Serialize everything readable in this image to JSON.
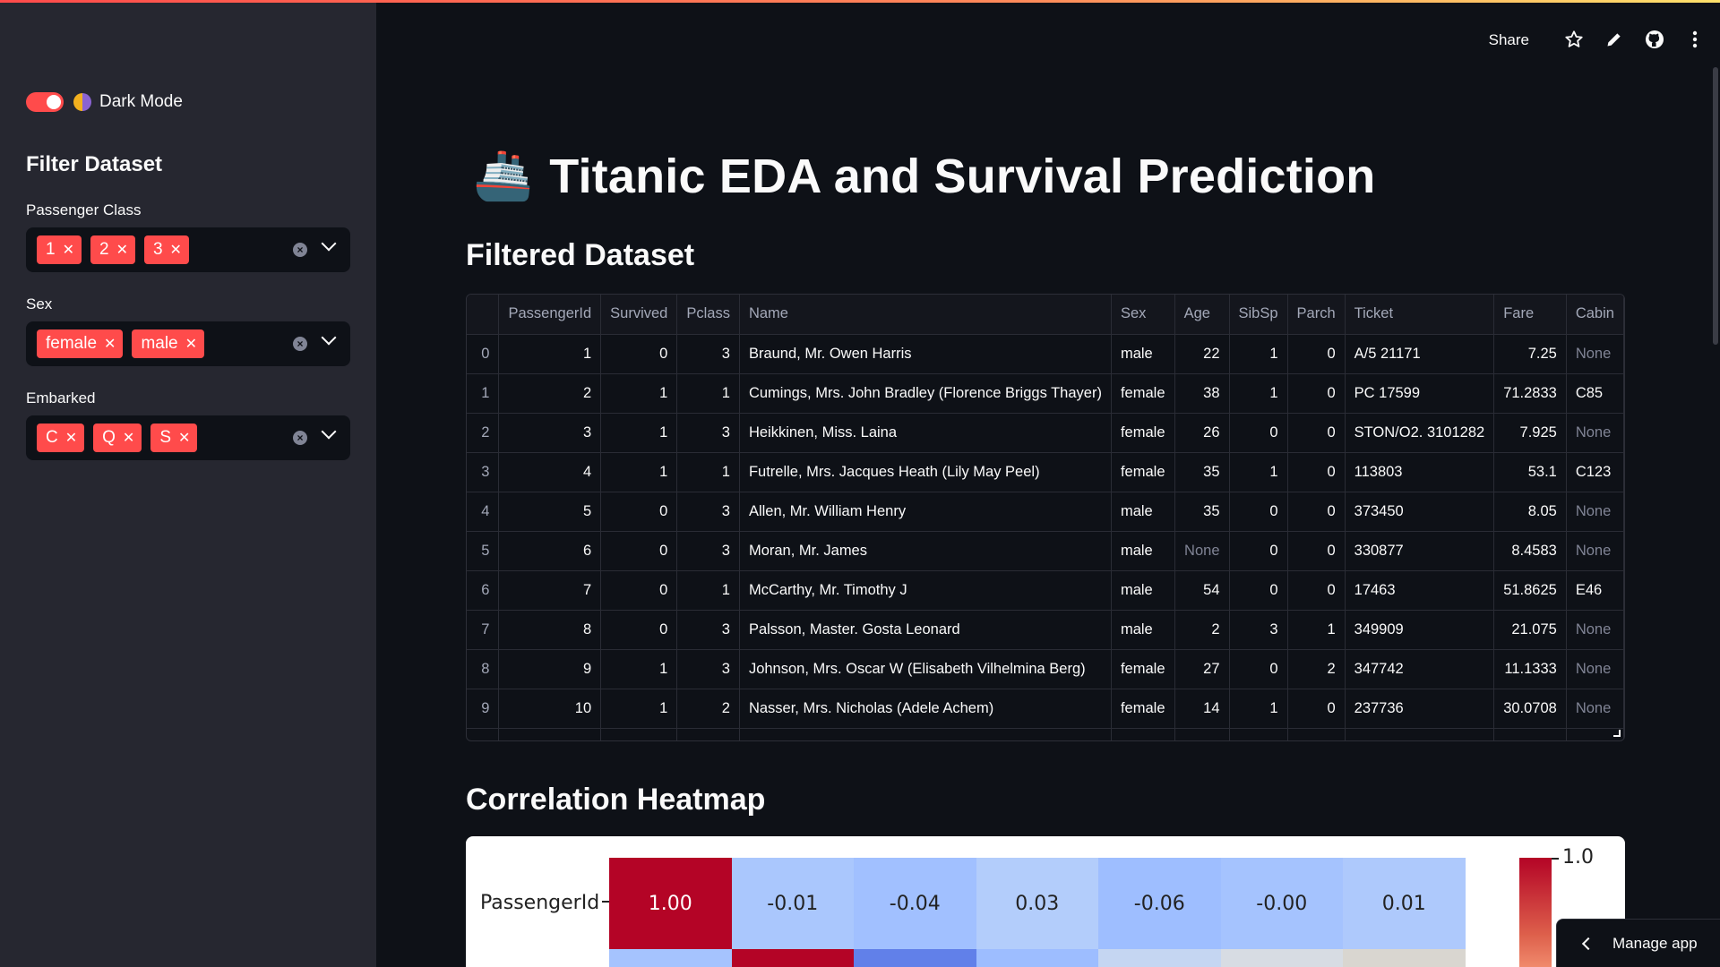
{
  "sidebar": {
    "toggle_label": "Dark Mode",
    "title": "Filter Dataset",
    "filters": [
      {
        "label": "Passenger Class",
        "chips": [
          "1",
          "2",
          "3"
        ]
      },
      {
        "label": "Sex",
        "chips": [
          "female",
          "male"
        ]
      },
      {
        "label": "Embarked",
        "chips": [
          "C",
          "Q",
          "S"
        ]
      }
    ]
  },
  "header": {
    "share_label": "Share",
    "icons": [
      "star-icon",
      "pencil-icon",
      "github-icon",
      "more-vertical-icon"
    ]
  },
  "main": {
    "title": "Titanic EDA and Survival Prediction",
    "title_icon": "ship-icon",
    "dataset_heading": "Filtered Dataset",
    "heatmap_heading": "Correlation Heatmap"
  },
  "table": {
    "columns": [
      "",
      "PassengerId",
      "Survived",
      "Pclass",
      "Name",
      "Sex",
      "Age",
      "SibSp",
      "Parch",
      "Ticket",
      "Fare",
      "Cabin"
    ],
    "rows": [
      [
        "0",
        "1",
        "0",
        "3",
        "Braund, Mr. Owen Harris",
        "male",
        "22",
        "1",
        "0",
        "A/5 21171",
        "7.25",
        "None"
      ],
      [
        "1",
        "2",
        "1",
        "1",
        "Cumings, Mrs. John Bradley (Florence Briggs Thayer)",
        "female",
        "38",
        "1",
        "0",
        "PC 17599",
        "71.2833",
        "C85"
      ],
      [
        "2",
        "3",
        "1",
        "3",
        "Heikkinen, Miss. Laina",
        "female",
        "26",
        "0",
        "0",
        "STON/O2. 3101282",
        "7.925",
        "None"
      ],
      [
        "3",
        "4",
        "1",
        "1",
        "Futrelle, Mrs. Jacques Heath (Lily May Peel)",
        "female",
        "35",
        "1",
        "0",
        "113803",
        "53.1",
        "C123"
      ],
      [
        "4",
        "5",
        "0",
        "3",
        "Allen, Mr. William Henry",
        "male",
        "35",
        "0",
        "0",
        "373450",
        "8.05",
        "None"
      ],
      [
        "5",
        "6",
        "0",
        "3",
        "Moran, Mr. James",
        "male",
        "None",
        "0",
        "0",
        "330877",
        "8.4583",
        "None"
      ],
      [
        "6",
        "7",
        "0",
        "1",
        "McCarthy, Mr. Timothy J",
        "male",
        "54",
        "0",
        "0",
        "17463",
        "51.8625",
        "E46"
      ],
      [
        "7",
        "8",
        "0",
        "3",
        "Palsson, Master. Gosta Leonard",
        "male",
        "2",
        "3",
        "1",
        "349909",
        "21.075",
        "None"
      ],
      [
        "8",
        "9",
        "1",
        "3",
        "Johnson, Mrs. Oscar W (Elisabeth Vilhelmina Berg)",
        "female",
        "27",
        "0",
        "2",
        "347742",
        "11.1333",
        "None"
      ],
      [
        "9",
        "10",
        "1",
        "2",
        "Nasser, Mrs. Nicholas (Adele Achem)",
        "female",
        "14",
        "1",
        "0",
        "237736",
        "30.0708",
        "None"
      ]
    ]
  },
  "heatmap": {
    "row_label": "PassengerId",
    "values": [
      "1.00",
      "-0.01",
      "-0.04",
      "0.03",
      "-0.06",
      "-0.00",
      "0.01"
    ],
    "colors": [
      "#b40426",
      "#aac7fd",
      "#a1c0ff",
      "#b3cdfb",
      "#9ebeff",
      "#a5c3fe",
      "#aec9fc"
    ],
    "second_row_colors": [
      "#a5c3fe",
      "#b40426",
      "#6180e9",
      "#9dbdff",
      "#c5d6f2",
      "#d7dce3",
      "#d9d6d0"
    ],
    "colorbar_max": "1.0"
  },
  "manage_label": "Manage app",
  "colors": {
    "accent": "#ff4b4b",
    "bg": "#0e1117",
    "sidebar": "#262730"
  }
}
